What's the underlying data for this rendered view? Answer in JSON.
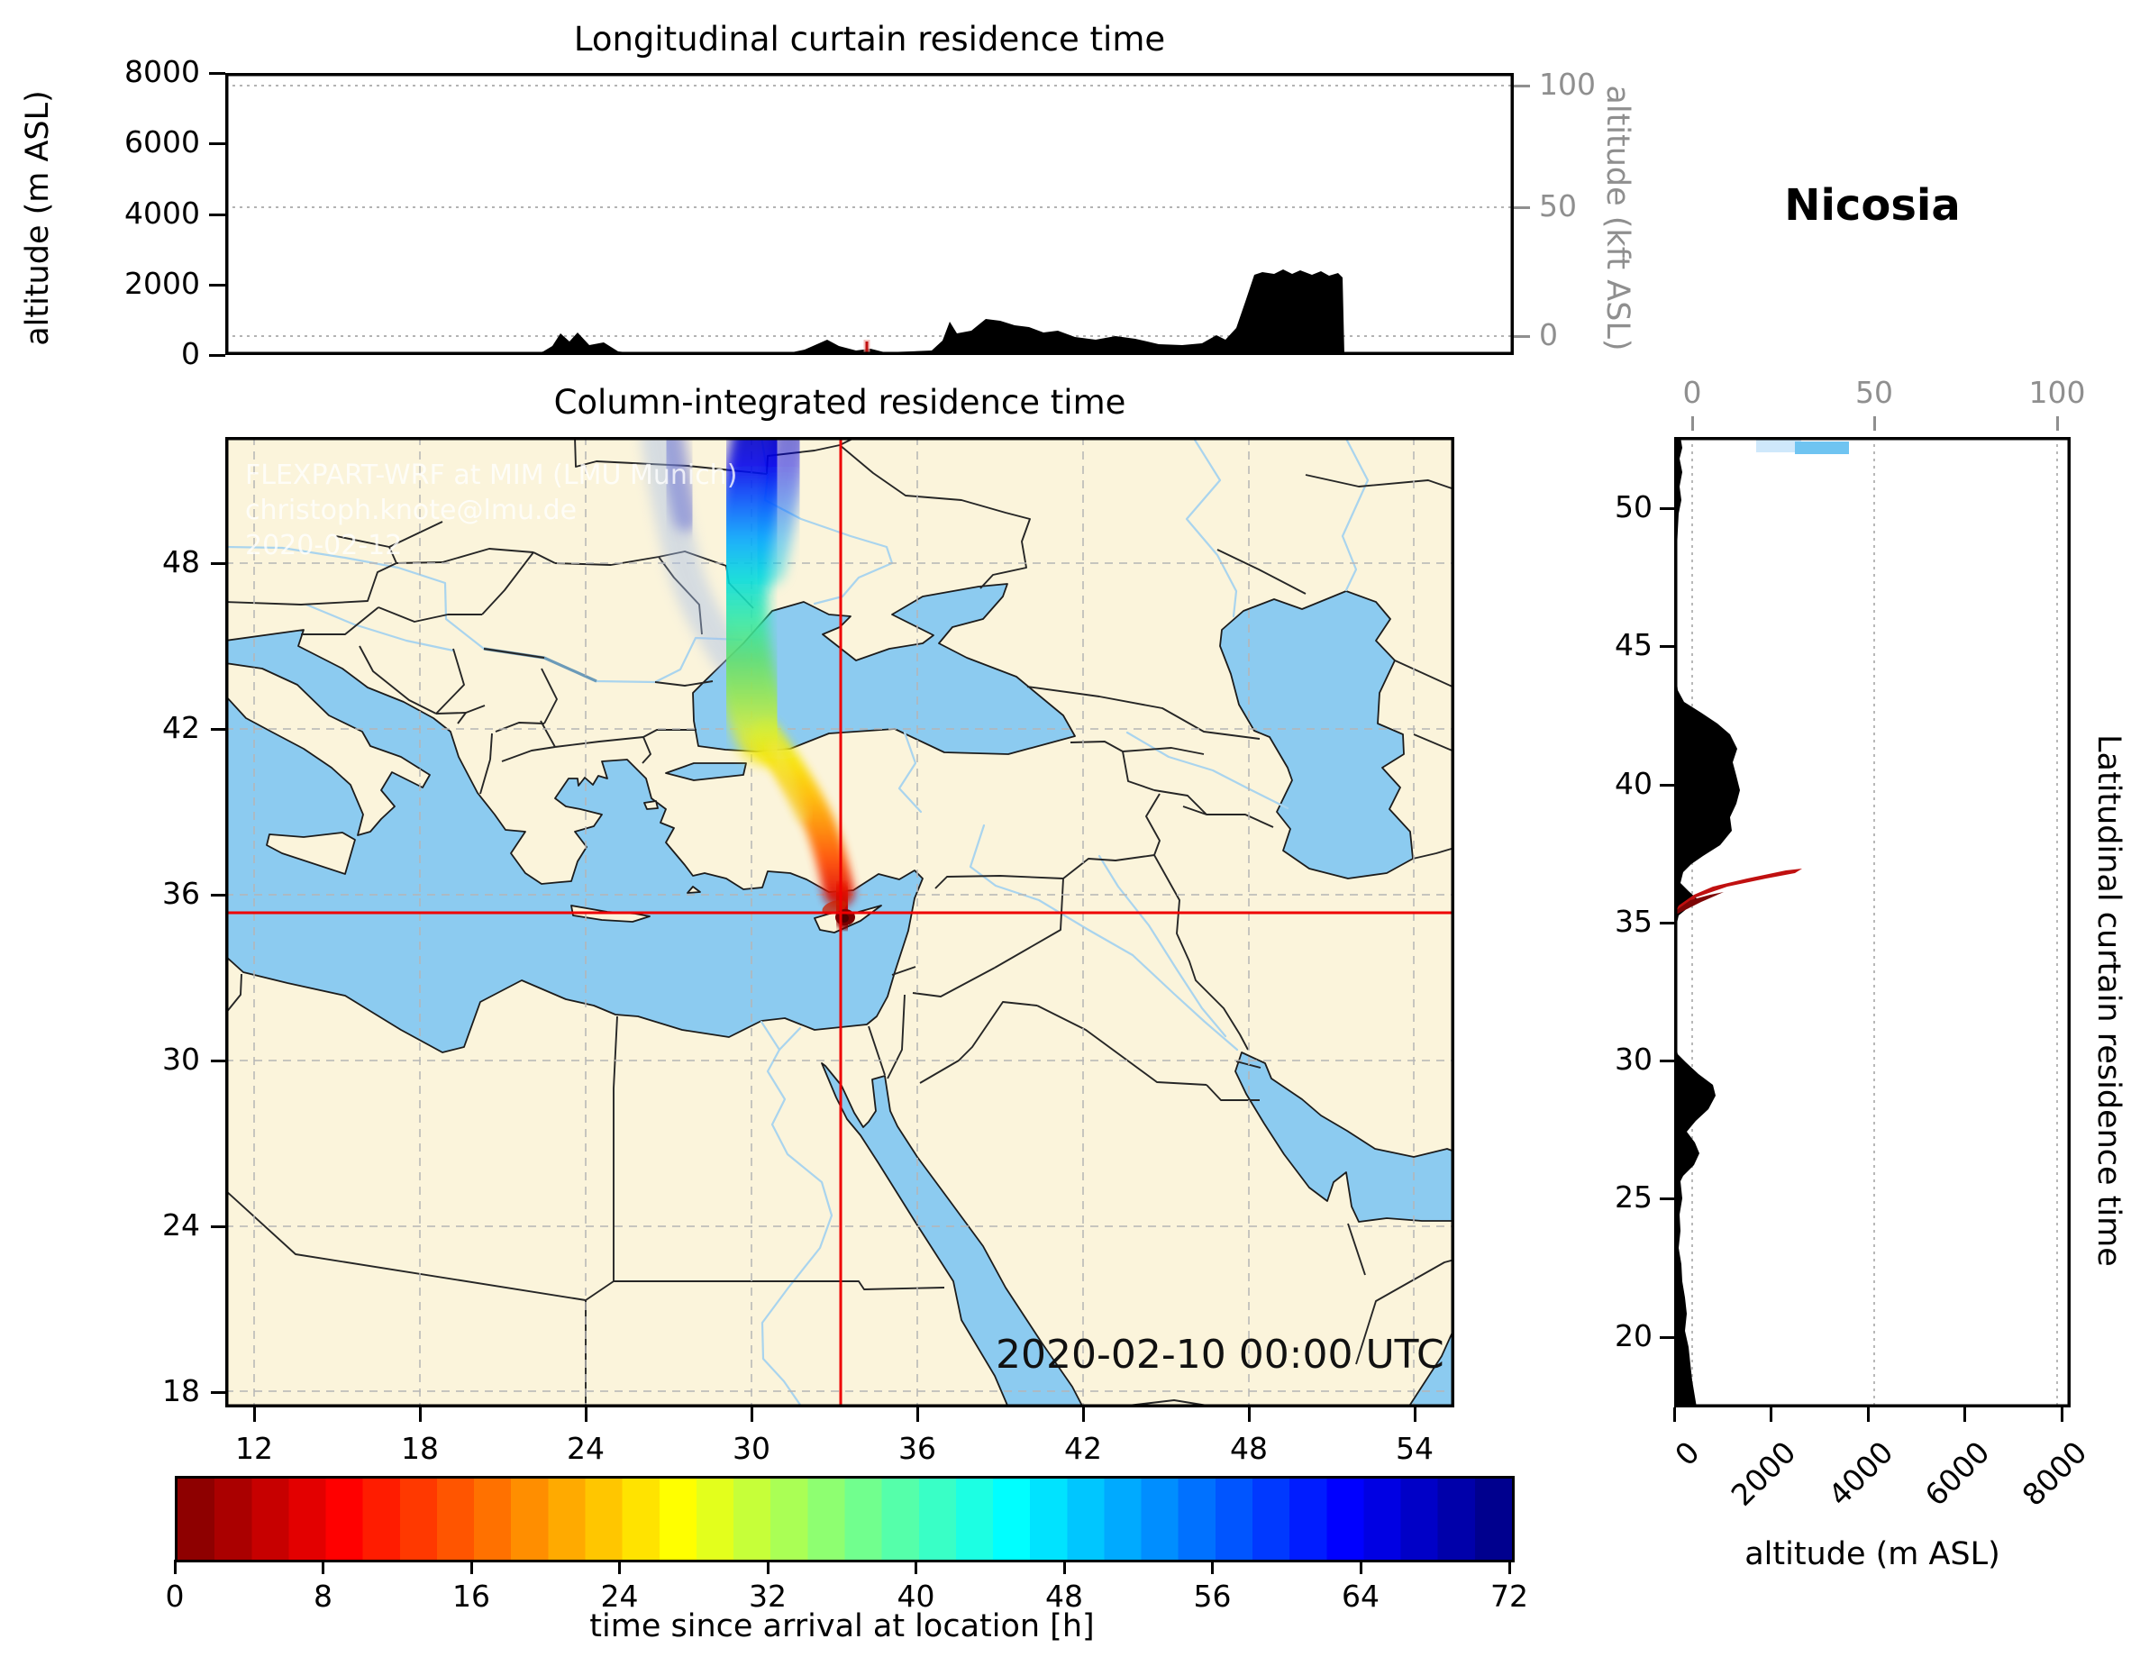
{
  "titles": {
    "top_panel": "Longitudinal curtain residence time",
    "map_panel": "Column-integrated residence time",
    "right_panel": "Latitudinal curtain residence time",
    "station": "Nicosia",
    "datetime": "2020-02-10 00:00 UTC"
  },
  "watermark": {
    "line1": "FLEXPART-WRF at MIM (LMU Munich)",
    "line2": "christoph.knote@lmu.de",
    "line3": "2020-02-12"
  },
  "axes": {
    "top_left": {
      "label": "altitude (m ASL)",
      "ticks": [
        "8000",
        "6000",
        "4000",
        "2000",
        "0"
      ]
    },
    "top_right": {
      "label": "altitude (kft ASL)",
      "ticks": [
        "100",
        "50",
        "0"
      ]
    },
    "map_x": {
      "ticks": [
        "12",
        "18",
        "24",
        "30",
        "36",
        "42",
        "48",
        "54"
      ]
    },
    "map_y": {
      "ticks": [
        "48",
        "42",
        "36",
        "30",
        "24",
        "18"
      ]
    },
    "right_top": {
      "ticks": [
        "0",
        "50",
        "100"
      ]
    },
    "right_y": {
      "ticks": [
        "50",
        "45",
        "40",
        "35",
        "30",
        "25",
        "20"
      ]
    },
    "right_bottom": {
      "label": "altitude (m ASL)",
      "ticks": [
        "0",
        "2000",
        "4000",
        "6000",
        "8000"
      ]
    }
  },
  "colorbar": {
    "label": "time since arrival at location [h]",
    "ticks": [
      "0",
      "8",
      "16",
      "24",
      "32",
      "40",
      "48",
      "56",
      "64",
      "72"
    ],
    "min": 0,
    "max": 72,
    "segments": 36,
    "colormap": "jet_reversed"
  },
  "chart_data": [
    {
      "type": "area",
      "title": "Longitudinal curtain residence time",
      "xlabel": "longitude (deg E, unlabeled)",
      "ylabel": "altitude (m ASL)",
      "xlim": [
        10.95,
        55.77
      ],
      "ylim": [
        0,
        8000
      ],
      "ylim_secondary_kft": [
        0,
        105
      ],
      "grid": "dotted horizontal at kft ticks 0/50/100",
      "series": [
        {
          "name": "terrain_elevation_m",
          "x": [
            11,
            21.6,
            22.6,
            23.3,
            24.2,
            25.3,
            28.5,
            31.0,
            31.9,
            32.9,
            33.9,
            35.8,
            36.15,
            37.4,
            38.4,
            39.4,
            40.5,
            41.9,
            43.4,
            44.9,
            45.4,
            46.1,
            46.7,
            47.7,
            48.3,
            49.0,
            49.6,
            49.75,
            49.8,
            55.77
          ],
          "y": [
            0,
            5,
            620,
            640,
            360,
            40,
            25,
            120,
            460,
            120,
            60,
            140,
            1000,
            1020,
            850,
            640,
            520,
            540,
            310,
            330,
            560,
            760,
            2280,
            2420,
            2400,
            2380,
            2340,
            2200,
            0,
            0
          ]
        },
        {
          "name": "release_marker",
          "x": [
            33.2
          ],
          "y": [
            0
          ],
          "note": "small red vertical dash at surface"
        }
      ]
    },
    {
      "type": "heatmap",
      "title": "Column-integrated residence time",
      "projection": "lon/lat map",
      "xlim": [
        10.95,
        55.45
      ],
      "ylim": [
        17.24,
        52.58
      ],
      "xticks": [
        12,
        18,
        24,
        30,
        36,
        42,
        48,
        54
      ],
      "yticks": [
        18,
        24,
        30,
        36,
        42,
        48
      ],
      "crosshair": {
        "lon": 33.23,
        "lat": 35.25,
        "color": "#e80000"
      },
      "plume_centerline_lon_lat_hours": [
        [
          33.4,
          35.2,
          0
        ],
        [
          33.3,
          36.1,
          4
        ],
        [
          33.0,
          37.4,
          8
        ],
        [
          32.7,
          38.8,
          12
        ],
        [
          32.3,
          40.2,
          16
        ],
        [
          31.6,
          41.6,
          20
        ],
        [
          30.8,
          43.0,
          26
        ],
        [
          30.0,
          45.0,
          32
        ],
        [
          29.5,
          47.5,
          42
        ],
        [
          29.6,
          49.0,
          48
        ],
        [
          29.8,
          50.5,
          56
        ],
        [
          30.3,
          52.5,
          66
        ]
      ],
      "secondary_branch_lon_lat_hours": [
        [
          28.9,
          47.2,
          46
        ],
        [
          28.1,
          48.9,
          52
        ],
        [
          27.4,
          50.4,
          58
        ],
        [
          26.6,
          52.4,
          66
        ]
      ],
      "release_point": {
        "lon": 33.4,
        "lat": 35.2
      }
    },
    {
      "type": "area",
      "title": "Latitudinal curtain residence time",
      "xlabel": "altitude (m ASL)",
      "ylabel": "latitude (deg N, unlabeled)",
      "xlim": [
        0,
        8185
      ],
      "xlim_secondary_kft": [
        0,
        105
      ],
      "ylim": [
        17.24,
        52.58
      ],
      "yticks": [
        20,
        25,
        30,
        35,
        40,
        45,
        50
      ],
      "series": [
        {
          "name": "terrain_elevation_m",
          "lat": [
            52.58,
            51.3,
            50.3,
            49.2,
            47.8,
            46,
            44,
            43,
            42.2,
            41.3,
            40.3,
            39.8,
            38.8,
            37.8,
            37.1,
            36.4,
            35.8,
            35.2,
            34,
            32,
            30.5,
            29.9,
            29.1,
            28.2,
            27.4,
            26.6,
            25.6,
            24.4,
            23.2,
            22,
            20.8,
            19.6,
            18.4,
            17.24
          ],
          "elev": [
            140,
            160,
            150,
            60,
            25,
            8,
            15,
            200,
            900,
            1300,
            1280,
            1350,
            1150,
            950,
            350,
            120,
            480,
            80,
            15,
            12,
            60,
            500,
            850,
            450,
            420,
            400,
            130,
            110,
            90,
            160,
            260,
            300,
            380,
            470
          ]
        },
        {
          "name": "plume_cross_section_red",
          "lat_range": [
            35.3,
            36.95
          ],
          "alt_range_m": [
            0,
            2700
          ],
          "hours_range": [
            0,
            8
          ]
        },
        {
          "name": "plume_cross_section_blue",
          "lat_range": [
            51.9,
            52.5
          ],
          "alt_range_m": [
            1700,
            3700
          ],
          "hours_range": [
            60,
            68
          ]
        }
      ]
    },
    {
      "type": "colorbar",
      "label": "time since arrival at location [h]",
      "range": [
        0,
        72
      ],
      "tick_values": [
        0,
        8,
        16,
        24,
        32,
        40,
        48,
        56,
        64,
        72
      ],
      "colormap": "jet reversed (dark red 0h -> red -> orange -> yellow -> green -> cyan -> blue -> dark navy 72h)",
      "discrete_segments": 36
    }
  ]
}
